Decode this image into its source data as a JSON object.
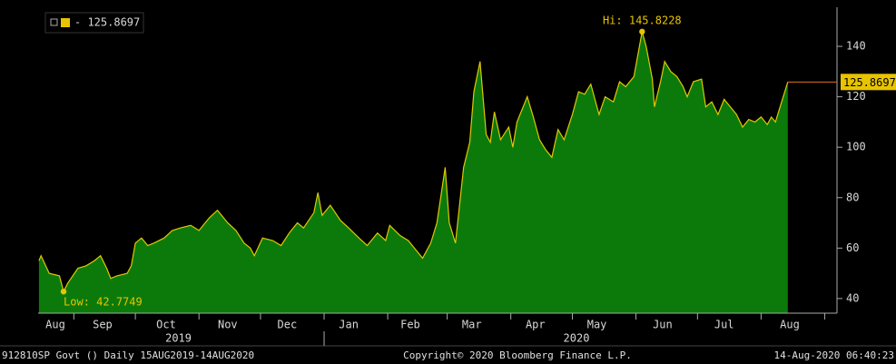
{
  "chart_data": {
    "type": "area",
    "legend_label": "- 125.8697",
    "series": [
      {
        "name": "- 125.8697",
        "color": "#e0c800",
        "fill": "#0b7a0b",
        "x": [
          0,
          1,
          5,
          10,
          12,
          14,
          19,
          23,
          27,
          30,
          33,
          35,
          38,
          43,
          45,
          47,
          50,
          53,
          56,
          61,
          65,
          69,
          74,
          78,
          83,
          87,
          92,
          96,
          100,
          103,
          105,
          109,
          114,
          118,
          122,
          126,
          129,
          134,
          136,
          138,
          142,
          147,
          151,
          156,
          160,
          165,
          169,
          171,
          176,
          180,
          185,
          187,
          191,
          194,
          198,
          200,
          203,
          207,
          210,
          212,
          215,
          218,
          220,
          222,
          225,
          229,
          231,
          233,
          238,
          241,
          244,
          247,
          250,
          253,
          256,
          260,
          263,
          266,
          269,
          273,
          276,
          280,
          283,
          286,
          290,
          294,
          296,
          299,
          300,
          303,
          305,
          308,
          311,
          314,
          316,
          319,
          323,
          325,
          328,
          331,
          334,
          337,
          340,
          343,
          346,
          349,
          352,
          355,
          357,
          359,
          362,
          365
        ],
        "values": [
          55,
          57,
          50,
          49,
          42.7749,
          46,
          52,
          53,
          55,
          57,
          52,
          48,
          49,
          50,
          53,
          62,
          64,
          61,
          62,
          64,
          67,
          68,
          69,
          67,
          72,
          75,
          70,
          67,
          62,
          60,
          57,
          64,
          63,
          61,
          66,
          70,
          68,
          74,
          82,
          73,
          77,
          71,
          68,
          64,
          61,
          66,
          63,
          69,
          65,
          63,
          58,
          56,
          62,
          70,
          92,
          70,
          62,
          92,
          102,
          122,
          134,
          105,
          102,
          114,
          103,
          108,
          100,
          110,
          120,
          112,
          103,
          99,
          96,
          107,
          103,
          113,
          122,
          121,
          125,
          113,
          120,
          118,
          126,
          124,
          128,
          145.8228,
          140,
          127,
          116,
          126,
          134,
          130,
          128,
          124,
          120,
          126,
          127,
          116,
          118,
          113,
          119,
          116,
          113,
          108,
          111,
          110,
          112,
          109,
          112,
          110,
          118,
          125.8697
        ]
      }
    ],
    "xlim": [
      -0.4,
      389
    ],
    "ylim": [
      34.2,
      155.5
    ],
    "yticks": [
      40,
      60,
      80,
      100,
      120,
      140
    ],
    "xticks": [
      {
        "value": 8,
        "label": "Aug"
      },
      {
        "value": 31,
        "label": "Sep"
      },
      {
        "value": 62,
        "label": "Oct"
      },
      {
        "value": 92,
        "label": "Nov"
      },
      {
        "value": 121,
        "label": "Dec"
      },
      {
        "value": 151,
        "label": "Jan"
      },
      {
        "value": 181,
        "label": "Feb"
      },
      {
        "value": 211,
        "label": "Mar"
      },
      {
        "value": 242,
        "label": "Apr"
      },
      {
        "value": 272,
        "label": "May"
      },
      {
        "value": 304,
        "label": "Jun"
      },
      {
        "value": 334,
        "label": "Jul"
      },
      {
        "value": 366,
        "label": "Aug"
      }
    ],
    "month_boundaries": [
      17,
      47,
      78,
      108,
      139,
      170,
      199,
      230,
      260,
      291,
      321,
      352,
      383
    ],
    "year_labels": [
      {
        "value": 68,
        "label": "2019"
      },
      {
        "value": 262,
        "label": "2020"
      }
    ],
    "year_separator": 139,
    "annotations": [
      {
        "text": "Hi: 145.8228",
        "x": 294,
        "y": 145.8228
      },
      {
        "text": "Low: 42.7749",
        "x": 12,
        "y": 42.7749
      }
    ],
    "last_value": 125.8697,
    "footer": {
      "left": "912810SP Govt ()  Daily 15AUG2019-14AUG2020",
      "center": "Copyright© 2020 Bloomberg Finance L.P.",
      "right": "14-Aug-2020 06:40:23"
    }
  }
}
